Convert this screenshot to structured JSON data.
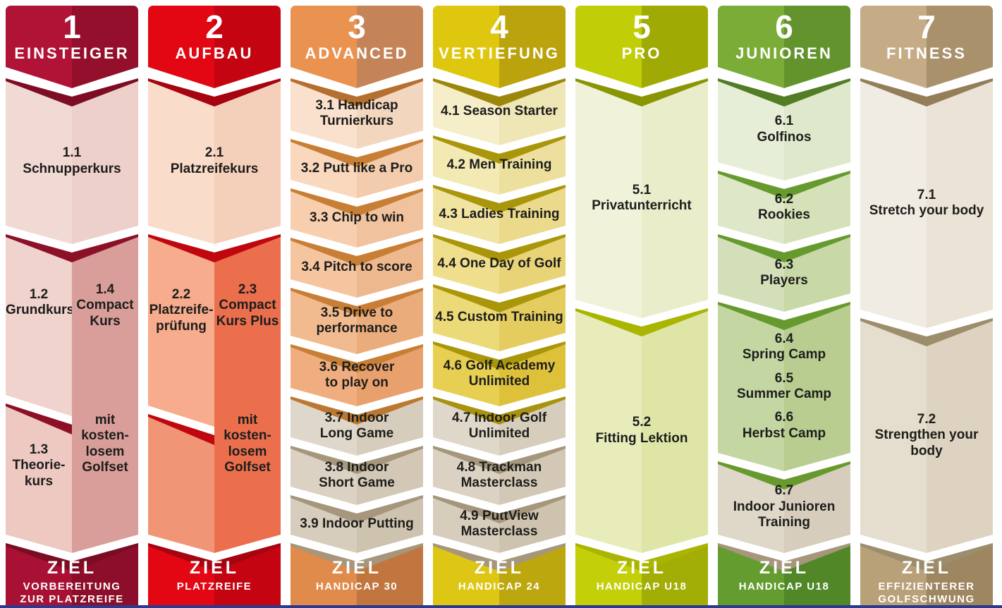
{
  "colors": {
    "einsteiger": "#B11336",
    "aufbau": "#E30613",
    "advanced": "#EA9351",
    "vertiefung": "#DFC70F",
    "pro": "#C1CD06",
    "junioren": "#7CAC38",
    "fitness": "#C5AC87",
    "body_text": "#1D1D1B",
    "goal_text": "#FFFFFF",
    "background": "#FFFFFF",
    "bottom_bar": "#2B3990"
  },
  "columns": [
    {
      "number": "1",
      "name": "EINSTEIGER",
      "segments": [
        {
          "label": "1.1\nSchnupperkurs"
        }
      ],
      "split": {
        "left_top": "1.2\nGrundkurs",
        "left_bottom": "1.3\nTheorie-\nkurs",
        "right_top": "1.4\nCompact\nKurs",
        "right_bottom": "mit\nkosten-\nlosem\nGolfset"
      },
      "ziel": "ZIEL",
      "goal": "VORBEREITUNG\nZUR PLATZREIFE"
    },
    {
      "number": "2",
      "name": "AUFBAU",
      "segments": [
        {
          "label": "2.1\nPlatzreifekurs"
        }
      ],
      "split": {
        "left_top": "2.2\nPlatzreife-\nprüfung",
        "left_bottom": "",
        "right_top": "2.3\nCompact\nKurs Plus",
        "right_bottom": "mit\nkosten-\nlosem\nGolfset"
      },
      "ziel": "ZIEL",
      "goal": "PLATZREIFE"
    },
    {
      "number": "3",
      "name": "ADVANCED",
      "segments": [
        {
          "label": "3.1 Handicap\nTurnierkurs"
        },
        {
          "label": "3.2 Putt like a Pro"
        },
        {
          "label": "3.3 Chip to win"
        },
        {
          "label": "3.4 Pitch to score"
        },
        {
          "label": "3.5 Drive to\nperformance"
        },
        {
          "label": "3.6 Recover\nto play on"
        },
        {
          "label": "3.7 Indoor\nLong Game"
        },
        {
          "label": "3.8 Indoor\nShort Game"
        },
        {
          "label": "3.9 Indoor Putting"
        }
      ],
      "ziel": "ZIEL",
      "goal": "HANDICAP 30"
    },
    {
      "number": "4",
      "name": "VERTIEFUNG",
      "segments": [
        {
          "label": "4.1 Season Starter"
        },
        {
          "label": "4.2 Men Training"
        },
        {
          "label": "4.3 Ladies Training"
        },
        {
          "label": "4.4 One Day of Golf"
        },
        {
          "label": "4.5 Custom Training"
        },
        {
          "label": "4.6 Golf Academy\nUnlimited"
        },
        {
          "label": "4.7 Indoor Golf\nUnlimited"
        },
        {
          "label": "4.8 Trackman\nMasterclass"
        },
        {
          "label": "4.9 PuttView\nMasterclass"
        }
      ],
      "ziel": "ZIEL",
      "goal": "HANDICAP 24"
    },
    {
      "number": "5",
      "name": "PRO",
      "segments": [
        {
          "label": "5.1\nPrivatunterricht"
        },
        {
          "label": "5.2\nFitting Lektion"
        }
      ],
      "ziel": "ZIEL",
      "goal": "HANDICAP U18"
    },
    {
      "number": "6",
      "name": "JUNIOREN",
      "segments": [
        {
          "label": "6.1\nGolfinos"
        },
        {
          "label": "6.2\nRookies"
        },
        {
          "label": "6.3\nPlayers"
        },
        {
          "items": [
            "6.4\nSpring Camp",
            "6.5\nSummer Camp",
            "6.6\nHerbst Camp"
          ]
        },
        {
          "label": "6.7\nIndoor Junioren\nTraining"
        }
      ],
      "ziel": "ZIEL",
      "goal": "HANDICAP U18"
    },
    {
      "number": "7",
      "name": "FITNESS",
      "segments": [
        {
          "label": "7.1\nStretch your body"
        },
        {
          "label": "7.2\nStrengthen your body"
        }
      ],
      "ziel": "ZIEL",
      "goal": "EFFIZIENTERER\nGOLFSCHWUNG"
    }
  ]
}
